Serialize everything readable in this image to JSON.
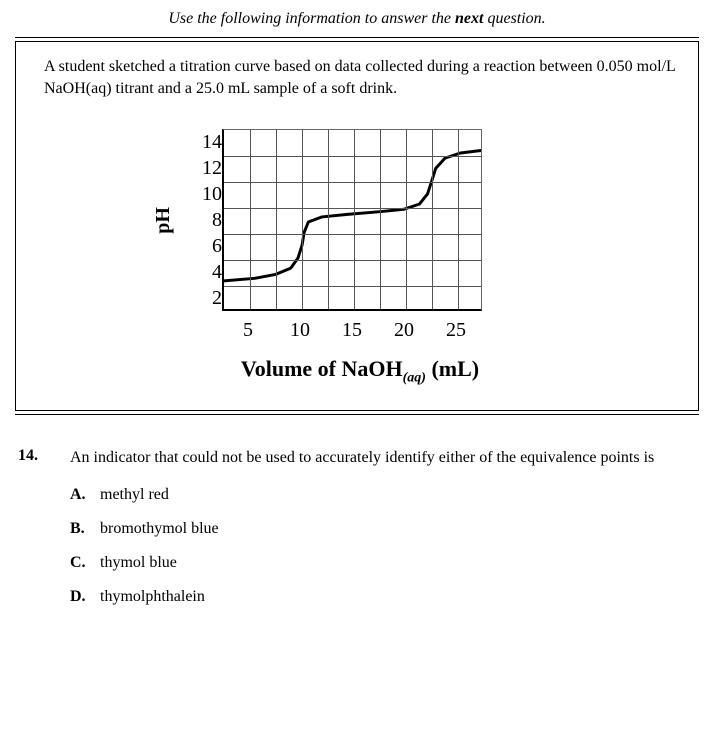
{
  "instruction_prefix": "Use the following information to answer the ",
  "instruction_bold": "next",
  "instruction_suffix": " question.",
  "context_text": "A student sketched a titration curve based on data collected during a reaction between 0.050 mol/L NaOH(aq) titrant and a 25.0 mL sample of a soft drink.",
  "chart": {
    "type": "line",
    "ylabel": "pH",
    "xlabel_prefix": "Volume of NaOH",
    "xlabel_sub": "(aq)",
    "xlabel_suffix": " (mL)",
    "y_ticks": [
      "14",
      "12",
      "10",
      "8",
      "6",
      "4",
      "2"
    ],
    "x_ticks": [
      "5",
      "10",
      "15",
      "20",
      "25"
    ],
    "xlim": [
      0,
      25
    ],
    "ylim": [
      0,
      14
    ],
    "grid_color": "#555",
    "axis_color": "#000",
    "curve_color": "#000",
    "curve_width": 3,
    "grid_x_steps": 10,
    "grid_y_steps": 7,
    "curve_points": [
      [
        0.0,
        2.2
      ],
      [
        3.0,
        2.4
      ],
      [
        5.0,
        2.7
      ],
      [
        6.5,
        3.2
      ],
      [
        7.2,
        4.0
      ],
      [
        7.6,
        5.0
      ],
      [
        7.8,
        6.0
      ],
      [
        8.2,
        6.8
      ],
      [
        9.5,
        7.2
      ],
      [
        12.0,
        7.4
      ],
      [
        15.0,
        7.6
      ],
      [
        17.5,
        7.8
      ],
      [
        19.0,
        8.2
      ],
      [
        19.8,
        9.0
      ],
      [
        20.2,
        10.0
      ],
      [
        20.6,
        11.0
      ],
      [
        21.5,
        11.8
      ],
      [
        23.0,
        12.2
      ],
      [
        25.0,
        12.4
      ]
    ]
  },
  "question": {
    "number": "14.",
    "text": "An indicator that could not be used to accurately identify either of the equivalence points is"
  },
  "options": [
    {
      "letter": "A.",
      "text": "methyl red"
    },
    {
      "letter": "B.",
      "text": "bromothymol blue"
    },
    {
      "letter": "C.",
      "text": "thymol blue"
    },
    {
      "letter": "D.",
      "text": "thymolphthalein"
    }
  ]
}
